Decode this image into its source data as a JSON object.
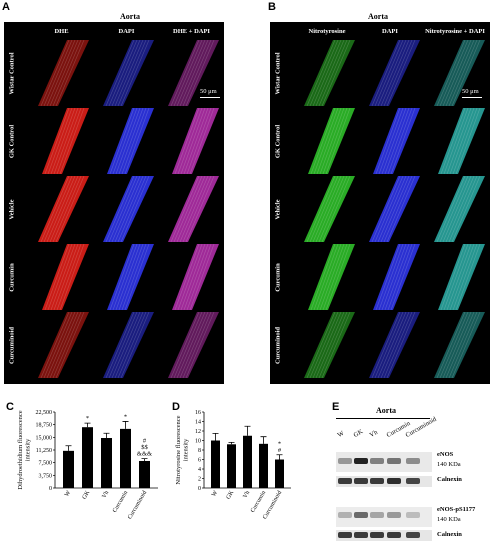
{
  "figure": {
    "panel_a": {
      "letter": "A",
      "title": "Aorta",
      "columns": [
        "DHE",
        "DAPI",
        "DHE + DAPI"
      ],
      "rows": [
        "Wistar Control",
        "GK Control",
        "Vehicle",
        "Curcumin",
        "Curcuminoid"
      ],
      "scale_label": "50 μm",
      "colors": {
        "DHE": "#e0201a",
        "DAPI": "#2f35e8",
        "merge": "#b02fa8"
      }
    },
    "panel_b": {
      "letter": "B",
      "title": "Aorta",
      "columns": [
        "Nitrotyrosine",
        "DAPI",
        "Nitrotyrosine + DAPI"
      ],
      "scale_label": "50 μm",
      "colors": {
        "nitro": "#2fbf2a",
        "DAPI": "#2f35e8",
        "merge": "#2aa6a0"
      }
    },
    "panel_c": {
      "letter": "C"
    },
    "panel_d": {
      "letter": "D"
    },
    "panel_e": {
      "letter": "E",
      "title": "Aorta",
      "lanes": [
        "W",
        "GK",
        "Vh",
        "Curcumin",
        "Curcuminoid"
      ],
      "blot1_name": "eNOS",
      "blot1_kda": "140 KDa",
      "blot1_loading": "Calnexin",
      "blot2_name": "eNOS-pS1177",
      "blot2_kda": "140 KDa",
      "blot2_loading": "Calnexin"
    }
  },
  "chart_data": [
    {
      "type": "bar",
      "panel": "C",
      "ylabel": "Dihydroethidium fluorescence intensity",
      "categories": [
        "W",
        "GK",
        "Vh",
        "Curcumin",
        "Curcuminoid"
      ],
      "values": [
        11000,
        18000,
        14800,
        17500,
        8000
      ],
      "errors": [
        1500,
        1200,
        1400,
        2200,
        700
      ],
      "ylim": [
        0,
        22500
      ],
      "yticks": [
        "0",
        "3,750",
        "7,500",
        "11,250",
        "15,000",
        "18,750",
        "22,500"
      ],
      "annotations": [
        {
          "category": "GK",
          "text": "*"
        },
        {
          "category": "Curcumin",
          "text": "*"
        },
        {
          "category": "Curcuminoid",
          "text": "#\n$$\n&&&"
        }
      ],
      "bar_color": "#000000"
    },
    {
      "type": "bar",
      "panel": "D",
      "ylabel": "Nitrotyrosine fluorescence intensity",
      "categories": [
        "W",
        "GK",
        "Vh",
        "Curcumin",
        "Curcuminoid"
      ],
      "values": [
        10,
        9.2,
        11,
        9.3,
        6
      ],
      "errors": [
        1.5,
        0.4,
        2.0,
        1.5,
        1.0
      ],
      "ylim": [
        0,
        16
      ],
      "yticks": [
        "0",
        "2",
        "4",
        "6",
        "8",
        "10",
        "12",
        "14",
        "16"
      ],
      "annotations": [
        {
          "category": "Curcuminoid",
          "text": "*\n#"
        }
      ],
      "bar_color": "#000000"
    }
  ]
}
